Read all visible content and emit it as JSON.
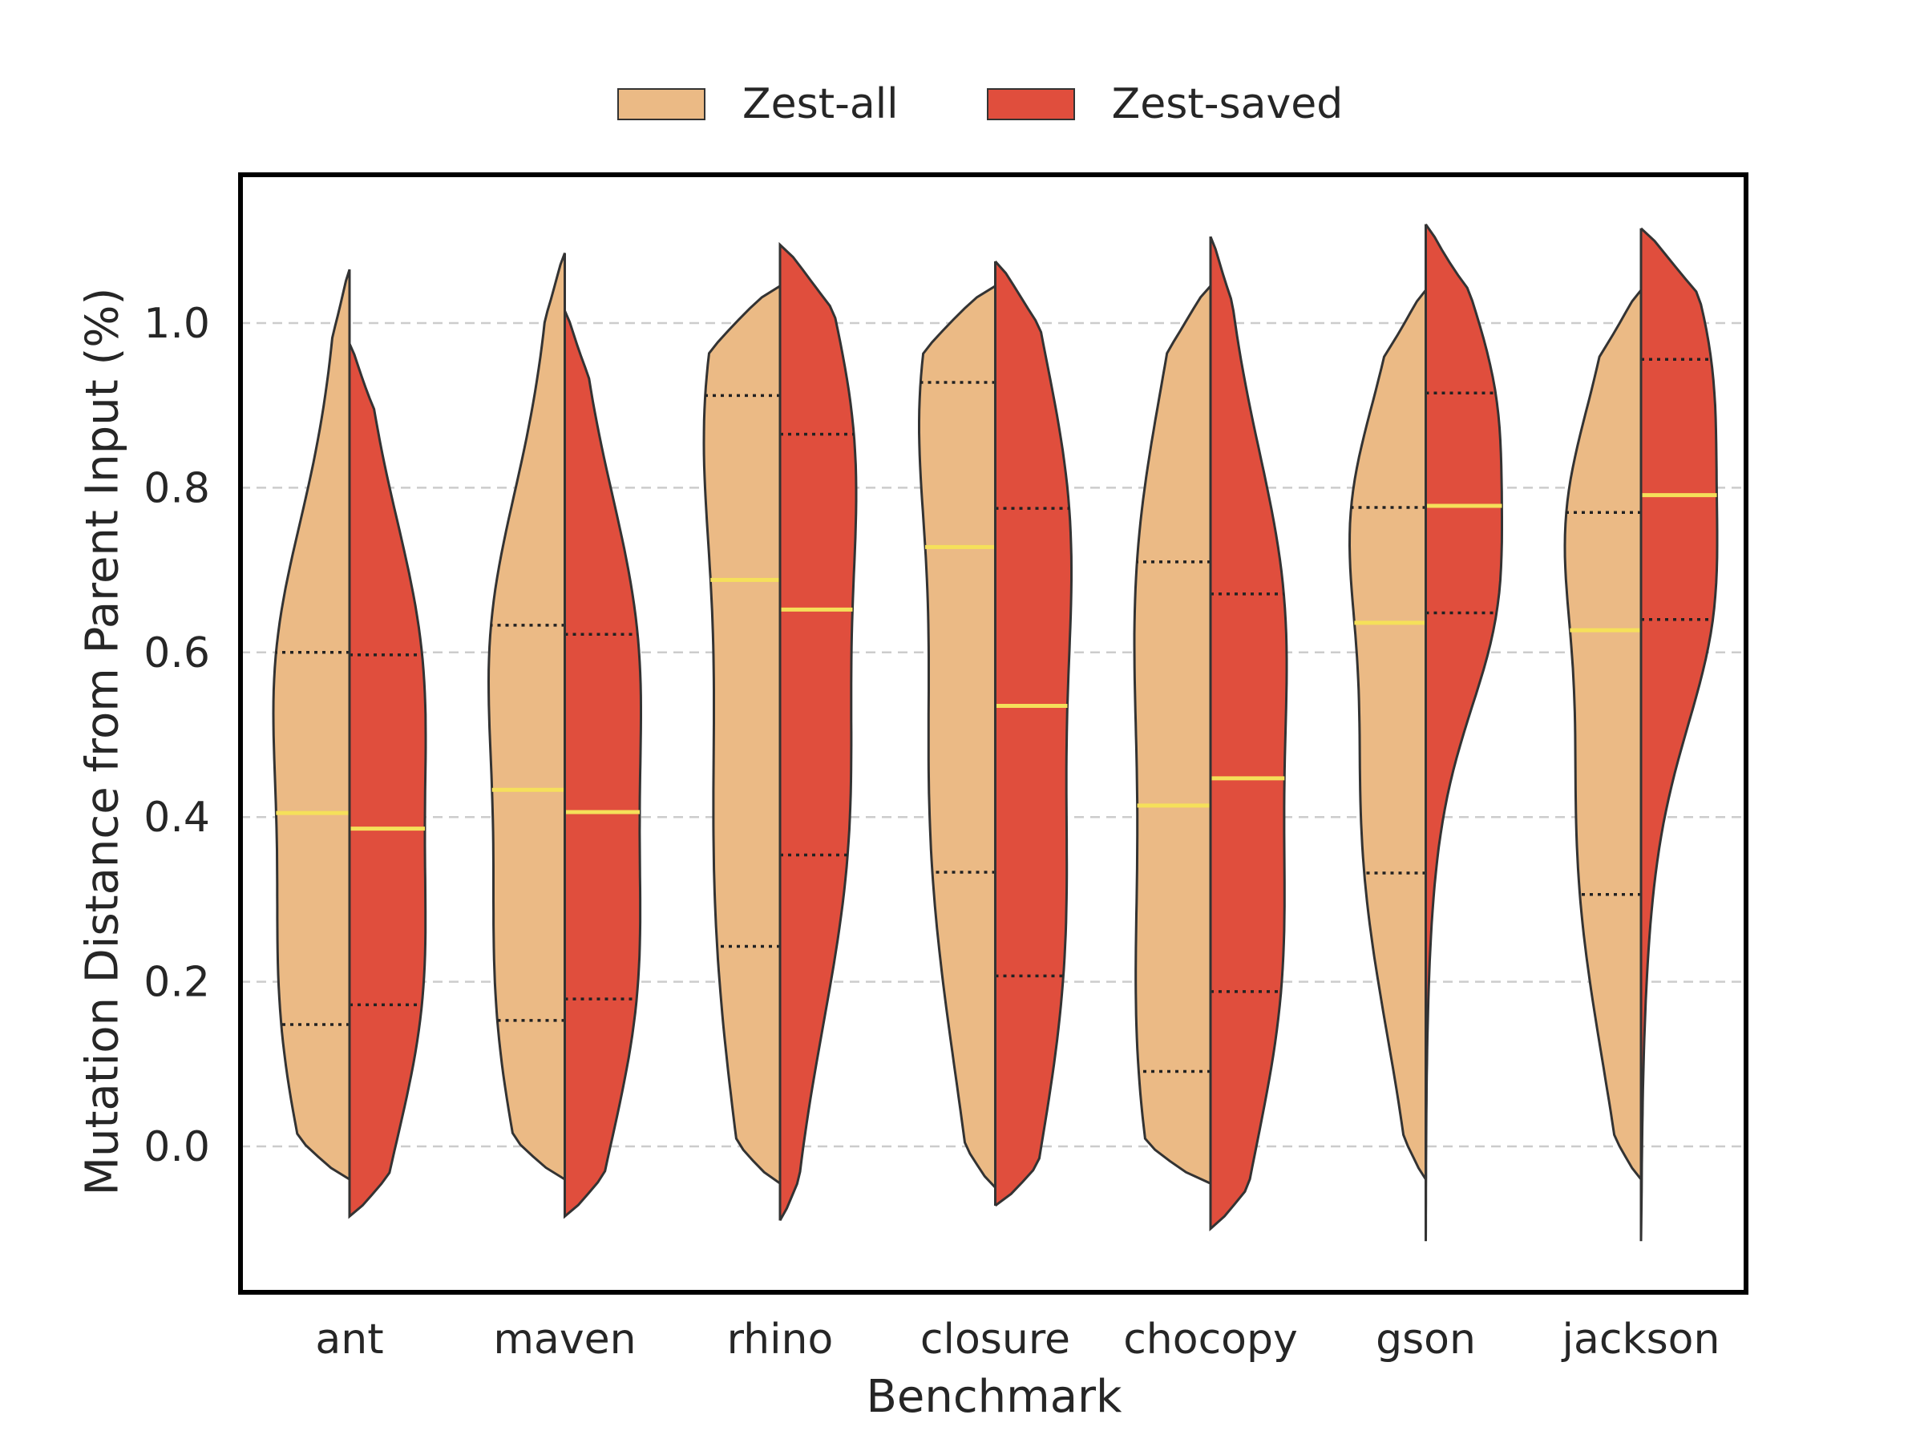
{
  "chart_data": {
    "type": "violin",
    "split": true,
    "xlabel": "Benchmark",
    "ylabel": "Mutation Distance from Parent Input (%)",
    "yticks": [
      0.0,
      0.2,
      0.4,
      0.6,
      0.8,
      1.0
    ],
    "ylim": [
      -0.18,
      1.18
    ],
    "grid": "horizontal dashed",
    "legend_position": "top-center",
    "categories": [
      "ant",
      "maven",
      "rhino",
      "closure",
      "chocopy",
      "gson",
      "jackson"
    ],
    "series": [
      {
        "name": "Zest-all",
        "color": "#EBBA85",
        "median": [
          0.405,
          0.433,
          0.688,
          0.728,
          0.414,
          0.636,
          0.627
        ],
        "q1": [
          0.148,
          0.153,
          0.243,
          0.333,
          0.091,
          0.332,
          0.306
        ],
        "q3": [
          0.6,
          0.633,
          0.912,
          0.928,
          0.71,
          0.776,
          0.77
        ],
        "min": [
          -0.04,
          -0.04,
          -0.045,
          -0.05,
          -0.045,
          -0.04,
          -0.04
        ],
        "max": [
          1.065,
          1.085,
          1.045,
          1.045,
          1.045,
          1.04,
          1.04
        ]
      },
      {
        "name": "Zest-saved",
        "color": "#E04E3D",
        "median": [
          0.386,
          0.406,
          0.652,
          0.535,
          0.447,
          0.778,
          0.791
        ],
        "q1": [
          0.172,
          0.179,
          0.354,
          0.207,
          0.188,
          0.648,
          0.64
        ],
        "q3": [
          0.597,
          0.622,
          0.865,
          0.775,
          0.671,
          0.915,
          0.956
        ],
        "min": [
          -0.085,
          -0.085,
          -0.09,
          -0.072,
          -0.1,
          -0.115,
          -0.115
        ],
        "max": [
          0.975,
          1.015,
          1.095,
          1.075,
          1.105,
          1.12,
          1.115
        ]
      }
    ]
  },
  "legend": {
    "items": [
      "Zest-all",
      "Zest-saved"
    ]
  },
  "colors": {
    "median_line": "#F5E05A",
    "outline": "#333333",
    "grid": "#cccccc",
    "text": "#262626"
  }
}
